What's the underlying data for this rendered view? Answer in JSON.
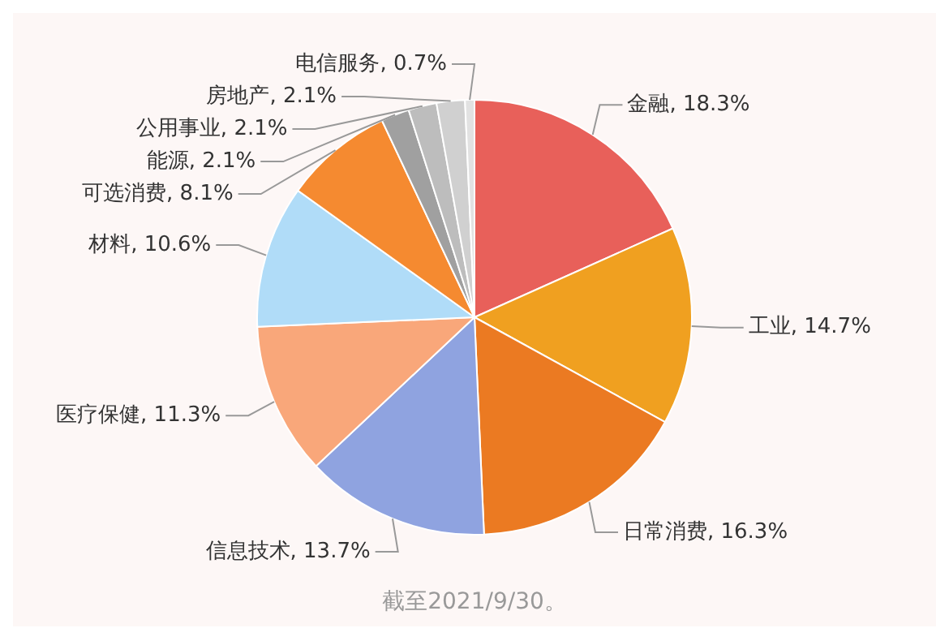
{
  "chart_data": {
    "type": "pie",
    "categories": [
      "金融",
      "工业",
      "日常消费",
      "信息技术",
      "医疗保健",
      "材料",
      "可选消费",
      "能源",
      "公用事业",
      "房地产",
      "电信服务"
    ],
    "values": [
      18.3,
      14.7,
      16.3,
      13.7,
      11.3,
      10.6,
      8.1,
      2.1,
      2.1,
      2.1,
      0.7
    ],
    "colors": [
      "#e8605a",
      "#f0a020",
      "#eb7a22",
      "#8fa3e0",
      "#f9a77a",
      "#b0dcf8",
      "#f58a30",
      "#a0a0a0",
      "#bdbdbd",
      "#d0d0d0",
      "#e2e2e2"
    ],
    "value_labels": [
      "18.3%",
      "14.7%",
      "16.3%",
      "13.7%",
      "11.3%",
      "10.6%",
      "8.1%",
      "2.1%",
      "2.1%",
      "2.1%",
      "0.7%"
    ],
    "legend": false,
    "annotations": [
      "截至2021/9/30。"
    ]
  }
}
